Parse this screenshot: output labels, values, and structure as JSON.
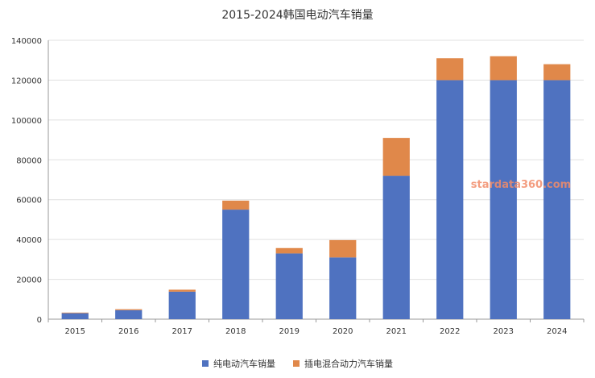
{
  "watermark": "stardata360.com",
  "colors": {
    "bev": "#4f72c0",
    "phev": "#e0884a",
    "grid": "#e0e0e0",
    "axis": "#999999"
  },
  "chart_data": {
    "type": "bar",
    "stacked": true,
    "title": "2015-2024韩国电动汽车销量",
    "xlabel": "",
    "ylabel": "",
    "categories": [
      "2015",
      "2016",
      "2017",
      "2018",
      "2019",
      "2020",
      "2021",
      "2022",
      "2023",
      "2024"
    ],
    "series": [
      {
        "name": "纯电动汽车销量",
        "color": "#4f72c0",
        "values": [
          3000,
          4500,
          13800,
          55000,
          33000,
          31000,
          72000,
          120000,
          120000,
          120000
        ]
      },
      {
        "name": "插电混合动力汽车销量",
        "color": "#e0884a",
        "values": [
          300,
          500,
          1000,
          4500,
          2700,
          8700,
          19000,
          11000,
          12000,
          8000
        ]
      }
    ],
    "ylim": [
      0,
      140000
    ],
    "yticks": [
      0,
      20000,
      40000,
      60000,
      80000,
      100000,
      120000,
      140000
    ],
    "grid": true,
    "legend_position": "bottom"
  }
}
